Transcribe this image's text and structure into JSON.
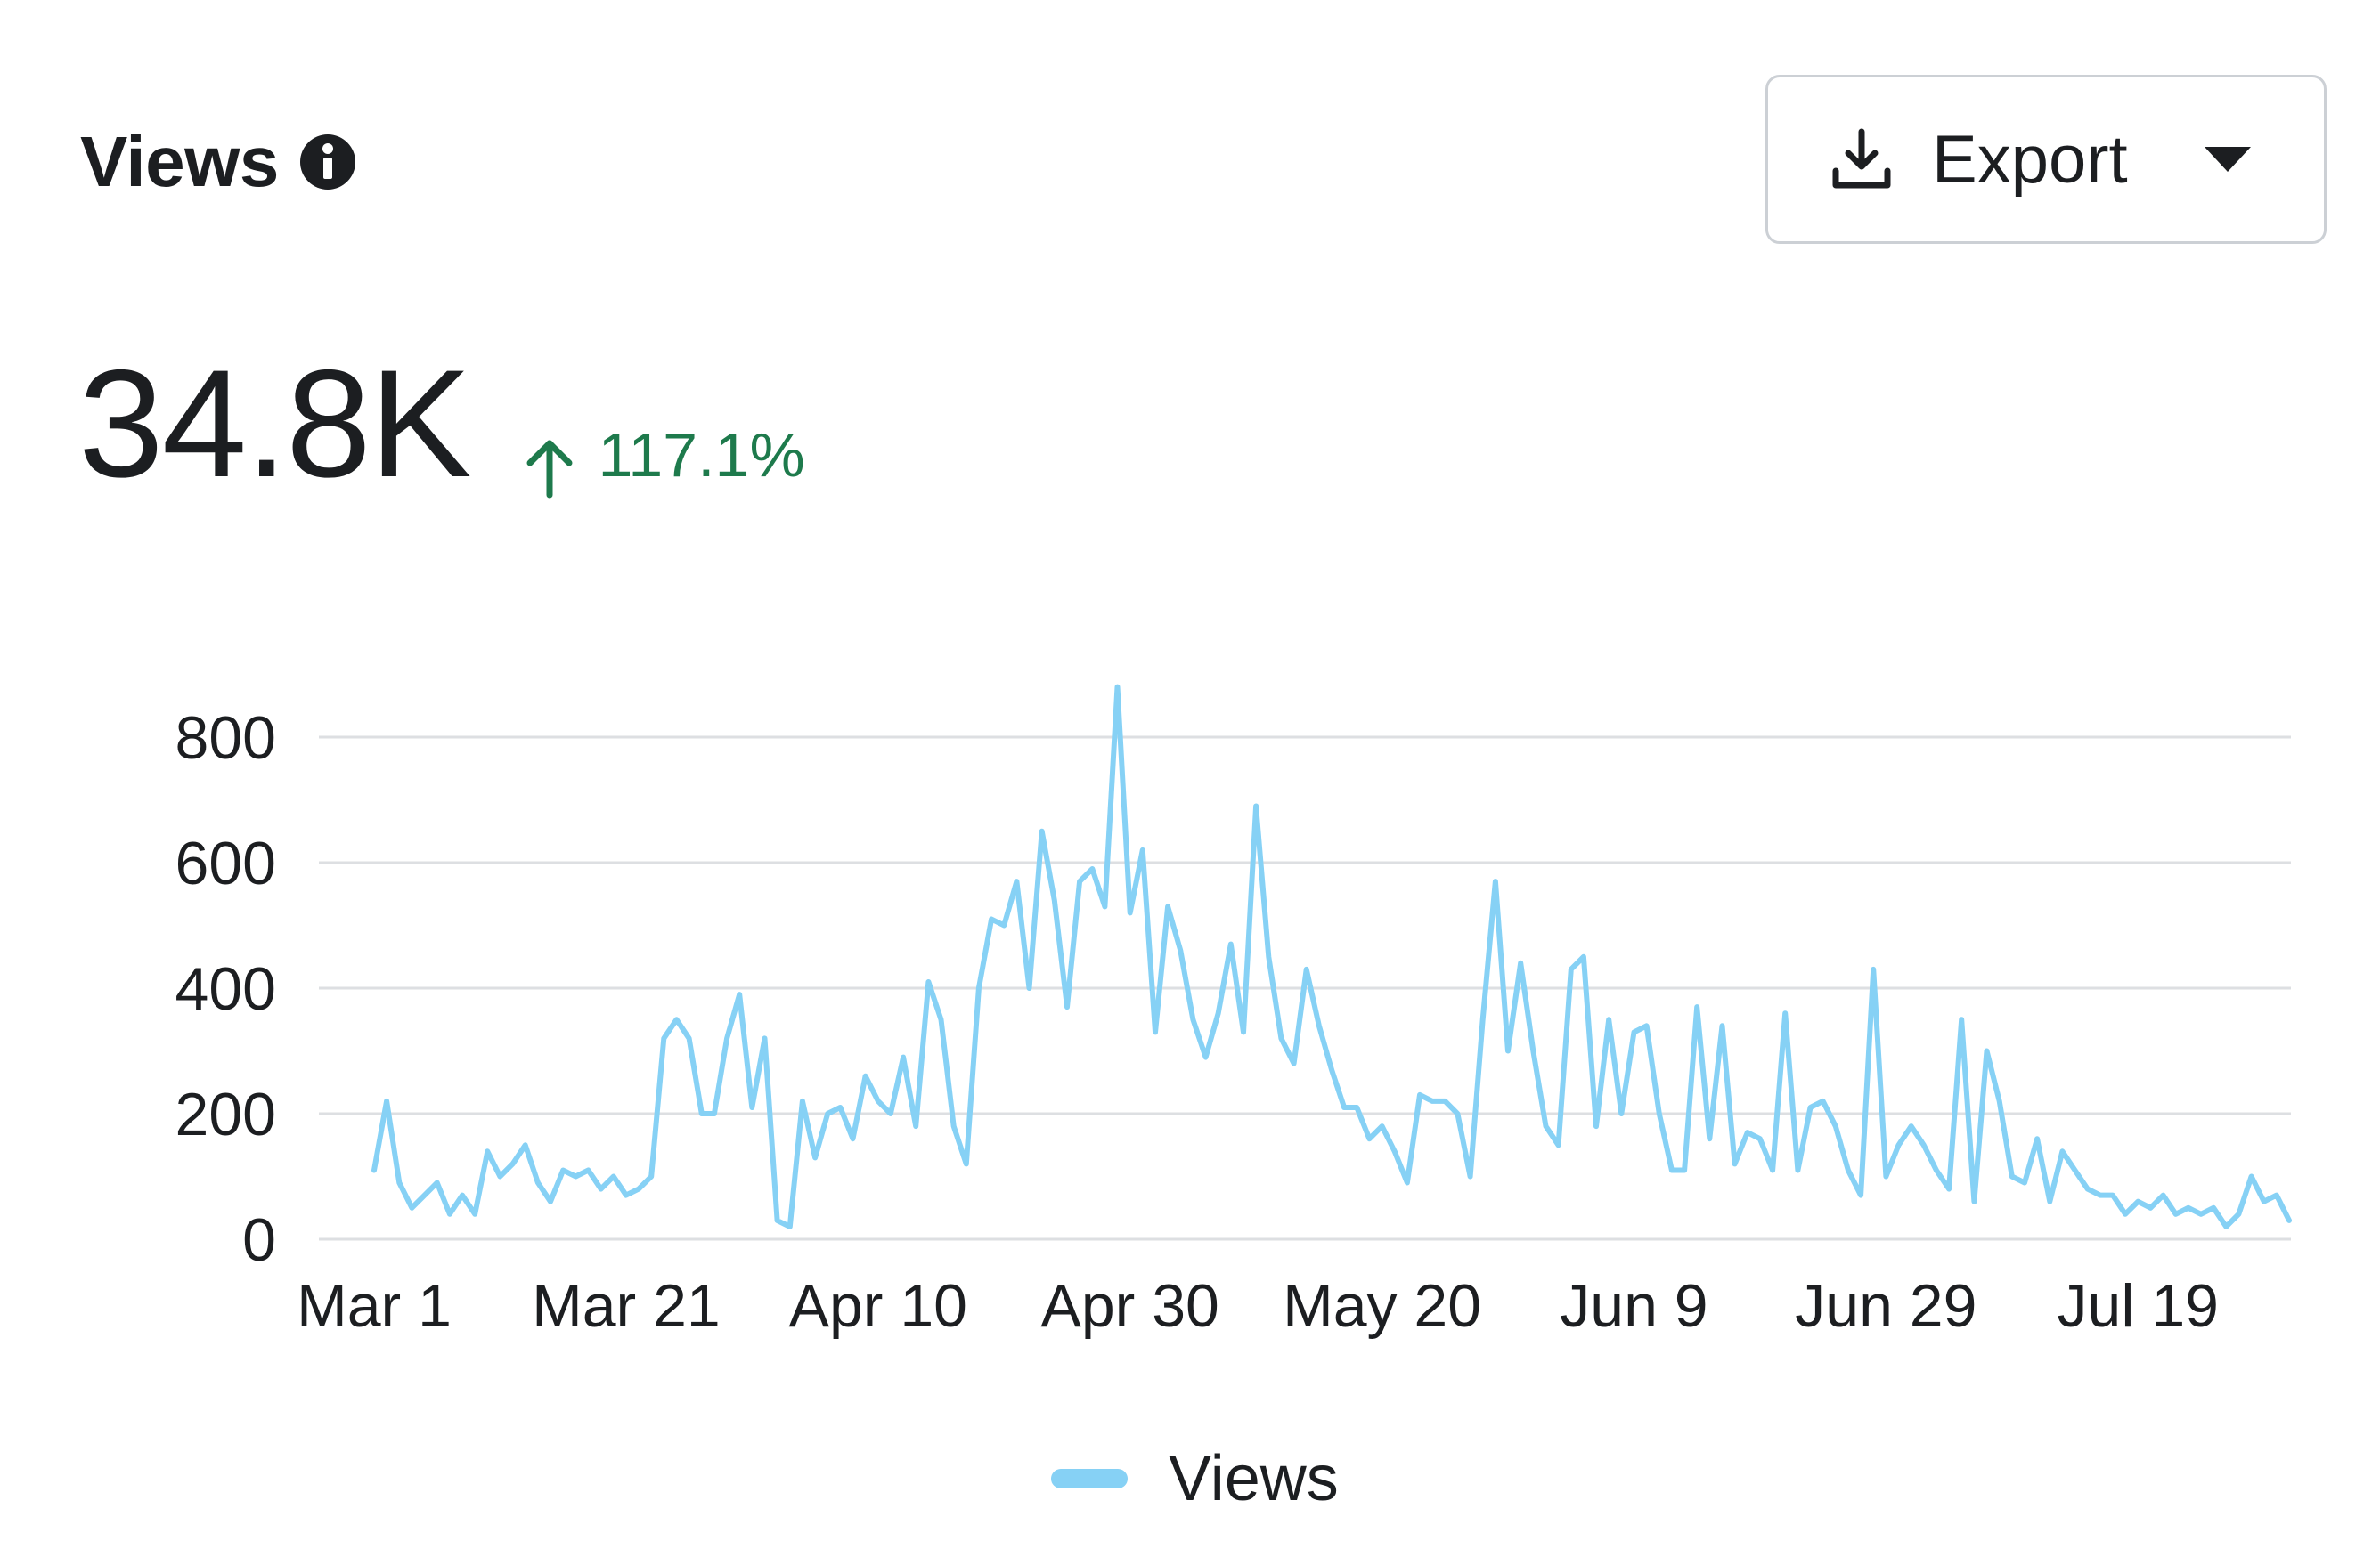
{
  "header": {
    "title": "Views",
    "info_icon": "info-icon"
  },
  "export_button": {
    "label": "Export",
    "icon": "download-icon",
    "caret_icon": "caret-down-icon"
  },
  "summary": {
    "value": "34.8K",
    "delta": "117.1%",
    "delta_direction": "up",
    "delta_color": "#1e7a4c"
  },
  "colors": {
    "series": "#86d1f5",
    "grid": "#dddfe2",
    "text": "#1c1e21"
  },
  "chart_data": {
    "type": "line",
    "x_ticks": [
      "Mar 1",
      "Mar 21",
      "Apr 10",
      "Apr 30",
      "May 20",
      "Jun 9",
      "Jun 29",
      "Jul 19"
    ],
    "y_ticks": [
      0,
      200,
      400,
      600,
      800
    ],
    "ylim": [
      0,
      800
    ],
    "grid": true,
    "legend": "bottom-center",
    "series": [
      {
        "name": "Views",
        "color": "#86d1f5",
        "values": [
          110,
          220,
          90,
          50,
          70,
          90,
          40,
          70,
          40,
          140,
          100,
          120,
          150,
          90,
          60,
          110,
          100,
          110,
          80,
          100,
          70,
          80,
          100,
          320,
          350,
          320,
          200,
          200,
          320,
          390,
          210,
          320,
          30,
          20,
          220,
          130,
          200,
          210,
          160,
          260,
          220,
          200,
          290,
          180,
          410,
          350,
          180,
          120,
          400,
          510,
          500,
          570,
          400,
          650,
          540,
          370,
          570,
          590,
          530,
          880,
          520,
          620,
          330,
          530,
          460,
          350,
          290,
          360,
          470,
          330,
          690,
          450,
          320,
          280,
          430,
          340,
          270,
          210,
          210,
          160,
          180,
          140,
          90,
          230,
          220,
          220,
          200,
          100,
          350,
          570,
          300,
          440,
          300,
          180,
          150,
          430,
          450,
          180,
          350,
          200,
          330,
          340,
          200,
          110,
          110,
          370,
          160,
          340,
          120,
          170,
          160,
          110,
          360,
          110,
          210,
          220,
          180,
          110,
          70,
          430,
          100,
          150,
          180,
          150,
          110,
          80,
          350,
          60,
          300,
          220,
          100,
          90,
          160,
          60,
          140,
          110,
          80,
          70,
          70,
          40,
          60,
          50,
          70,
          40,
          50,
          40,
          50,
          20,
          40,
          100,
          60,
          70,
          30
        ]
      }
    ]
  }
}
